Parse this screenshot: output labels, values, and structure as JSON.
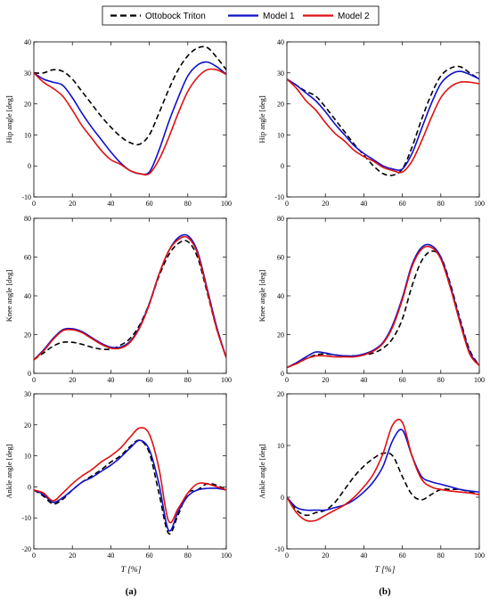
{
  "legend": {
    "items": [
      {
        "label": "Ottobock Triton",
        "color": "#000000",
        "dash": true
      },
      {
        "label": "Model 1",
        "color": "#1010c8",
        "dash": false
      },
      {
        "label": "Model 2",
        "color": "#e01010",
        "dash": false
      }
    ]
  },
  "panel_labels": [
    "(a)",
    "(b)"
  ],
  "x_axis_label": "T [%]",
  "chart_data": [
    {
      "type": "line",
      "id": "hip-a",
      "col": 0,
      "row": 0,
      "ylabel": "Hip angle [deg]",
      "xlim": [
        0,
        100
      ],
      "ylim": [
        -10,
        40
      ],
      "yticks": [
        -10,
        0,
        10,
        20,
        30,
        40
      ],
      "xticks": [
        0,
        20,
        40,
        60,
        80,
        100
      ],
      "x": [
        0,
        5,
        10,
        15,
        20,
        25,
        30,
        35,
        40,
        45,
        50,
        55,
        60,
        65,
        70,
        75,
        80,
        85,
        90,
        95,
        100
      ],
      "series": [
        {
          "name": "Ottobock Triton",
          "values": [
            30,
            30,
            31,
            30.5,
            28,
            24,
            20,
            16,
            12.5,
            9.5,
            7.5,
            7,
            10,
            17,
            24.5,
            31,
            35.5,
            38,
            38.2,
            35,
            31
          ]
        },
        {
          "name": "Model 1",
          "values": [
            30,
            28,
            27,
            26,
            22,
            17,
            12.5,
            8.5,
            4.5,
            1,
            -1.5,
            -2.5,
            -2,
            5,
            14,
            22,
            29,
            32.5,
            33.5,
            32,
            29.5
          ]
        },
        {
          "name": "Model 2",
          "values": [
            30,
            27,
            25,
            22.5,
            18,
            13,
            9,
            5,
            2,
            0.5,
            -1.5,
            -2.5,
            -2.5,
            2,
            9,
            17,
            24,
            28.5,
            31,
            31,
            29.5
          ]
        }
      ]
    },
    {
      "type": "line",
      "id": "knee-a",
      "col": 0,
      "row": 1,
      "ylabel": "Knee angle [deg]",
      "xlim": [
        0,
        100
      ],
      "ylim": [
        0,
        80
      ],
      "yticks": [
        0,
        20,
        40,
        60,
        80
      ],
      "xticks": [
        0,
        20,
        40,
        60,
        80,
        100
      ],
      "x": [
        0,
        5,
        10,
        15,
        20,
        25,
        30,
        35,
        40,
        45,
        50,
        55,
        60,
        65,
        70,
        75,
        80,
        85,
        90,
        95,
        100
      ],
      "series": [
        {
          "name": "Ottobock Triton",
          "values": [
            7,
            10.5,
            14,
            16,
            16,
            15,
            13.5,
            12.5,
            12.5,
            14.5,
            18,
            25,
            36,
            50,
            61,
            67,
            68,
            60,
            42,
            23,
            8
          ]
        },
        {
          "name": "Model 1",
          "values": [
            7,
            12,
            18,
            22.5,
            23,
            21.5,
            18.5,
            15.5,
            13.5,
            13.5,
            16.5,
            24,
            36,
            51,
            63,
            70,
            71,
            63,
            44,
            24,
            8
          ]
        },
        {
          "name": "Model 2",
          "values": [
            7,
            11.5,
            17.5,
            22,
            22.5,
            21,
            18,
            15,
            13,
            13,
            16,
            23.5,
            35.5,
            51,
            63,
            69,
            70,
            62,
            43,
            23,
            8
          ]
        }
      ]
    },
    {
      "type": "line",
      "id": "ankle-a",
      "col": 0,
      "row": 2,
      "ylabel": "Ankle angle [deg]",
      "xlim": [
        0,
        100
      ],
      "ylim": [
        -20,
        30
      ],
      "yticks": [
        -20,
        -10,
        0,
        10,
        20,
        30
      ],
      "xticks": [
        0,
        20,
        40,
        60,
        80,
        100
      ],
      "x": [
        0,
        5,
        10,
        15,
        20,
        25,
        30,
        35,
        40,
        45,
        50,
        55,
        60,
        65,
        70,
        75,
        80,
        85,
        90,
        95,
        100
      ],
      "series": [
        {
          "name": "Ottobock Triton",
          "values": [
            -1,
            -3,
            -5.5,
            -4,
            -1,
            1.5,
            3.5,
            5.5,
            8,
            10,
            13,
            15,
            11,
            -2,
            -15,
            -9,
            -2,
            -1,
            1,
            0.5,
            -1
          ]
        },
        {
          "name": "Model 1",
          "values": [
            -1,
            -2.5,
            -5,
            -3.5,
            -1,
            1.5,
            3,
            5,
            7,
            9.5,
            12.5,
            15,
            12,
            1,
            -14,
            -8,
            -3,
            -1,
            -0.5,
            -0.5,
            -1
          ]
        },
        {
          "name": "Model 2",
          "values": [
            -1,
            -2,
            -4.5,
            -2,
            1,
            3.5,
            5.5,
            8,
            10,
            12.5,
            16,
            19,
            17,
            6,
            -11,
            -7,
            -2,
            1,
            1,
            0,
            -1
          ]
        }
      ]
    },
    {
      "type": "line",
      "id": "hip-b",
      "col": 1,
      "row": 0,
      "ylabel": "Hip angle [deg]",
      "xlim": [
        0,
        100
      ],
      "ylim": [
        -10,
        40
      ],
      "yticks": [
        -10,
        0,
        10,
        20,
        30,
        40
      ],
      "xticks": [
        0,
        20,
        40,
        60,
        80,
        100
      ],
      "x": [
        0,
        5,
        10,
        15,
        20,
        25,
        30,
        35,
        40,
        45,
        50,
        55,
        60,
        65,
        70,
        75,
        80,
        85,
        90,
        95,
        100
      ],
      "series": [
        {
          "name": "Ottobock Triton",
          "values": [
            28,
            26,
            24,
            22.5,
            19,
            15,
            11,
            7,
            3.5,
            0,
            -2.5,
            -3,
            -1,
            6,
            15,
            23,
            29,
            31.5,
            32,
            30,
            28
          ]
        },
        {
          "name": "Model 1",
          "values": [
            28,
            26,
            23.5,
            21,
            17.5,
            13.5,
            10,
            6.5,
            4,
            2,
            0,
            -1,
            -1,
            4,
            12,
            20,
            26.5,
            29.5,
            30.5,
            29.5,
            28
          ]
        },
        {
          "name": "Model 2",
          "values": [
            28,
            25,
            21,
            18,
            14,
            10.5,
            8,
            5,
            3,
            1.5,
            -0.5,
            -1.5,
            -2,
            1.5,
            8,
            15.5,
            22,
            25.5,
            27,
            27,
            26.5
          ]
        }
      ]
    },
    {
      "type": "line",
      "id": "knee-b",
      "col": 1,
      "row": 1,
      "ylabel": "Knee angle [deg]",
      "xlim": [
        0,
        100
      ],
      "ylim": [
        0,
        80
      ],
      "yticks": [
        0,
        20,
        40,
        60,
        80
      ],
      "xticks": [
        0,
        20,
        40,
        60,
        80,
        100
      ],
      "x": [
        0,
        5,
        10,
        15,
        20,
        25,
        30,
        35,
        40,
        45,
        50,
        55,
        60,
        65,
        70,
        75,
        80,
        85,
        90,
        95,
        100
      ],
      "series": [
        {
          "name": "Ottobock Triton",
          "values": [
            3,
            5,
            7.5,
            9.5,
            10,
            9.5,
            9,
            9,
            9.5,
            10.5,
            13,
            18,
            28,
            45,
            58,
            63,
            60,
            46,
            28,
            12,
            4
          ]
        },
        {
          "name": "Model 1",
          "values": [
            3,
            5.5,
            8.5,
            11,
            10.5,
            9.5,
            9,
            9,
            10,
            12,
            16,
            25,
            39,
            56,
            65,
            66,
            60,
            45,
            27,
            11,
            4
          ]
        },
        {
          "name": "Model 2",
          "values": [
            3,
            5,
            7.5,
            9,
            9,
            8.5,
            8.5,
            8.5,
            9.5,
            11.5,
            15.5,
            24,
            38,
            55,
            64,
            65,
            59,
            44,
            26,
            10,
            4
          ]
        }
      ]
    },
    {
      "type": "line",
      "id": "ankle-b",
      "col": 1,
      "row": 2,
      "ylabel": "Ankle angle [deg]",
      "xlim": [
        0,
        100
      ],
      "ylim": [
        -10,
        20
      ],
      "yticks": [
        -10,
        0,
        10,
        20
      ],
      "xticks": [
        0,
        20,
        40,
        60,
        80,
        100
      ],
      "x": [
        0,
        5,
        10,
        15,
        20,
        25,
        30,
        35,
        40,
        45,
        50,
        55,
        60,
        65,
        70,
        75,
        80,
        85,
        90,
        95,
        100
      ],
      "series": [
        {
          "name": "Ottobock Triton",
          "values": [
            0,
            -2.5,
            -3.5,
            -3,
            -2.5,
            -1,
            1.5,
            4,
            6,
            7.5,
            8.5,
            8,
            4,
            0.5,
            -0.5,
            0.5,
            1.5,
            1.5,
            1.5,
            1,
            0.5
          ]
        },
        {
          "name": "Model 1",
          "values": [
            0,
            -2,
            -2.5,
            -2.5,
            -2.5,
            -2,
            -1.5,
            -0.5,
            1,
            3,
            6,
            11,
            13,
            8,
            4,
            3,
            2.5,
            2,
            1.5,
            1.2,
            1
          ]
        },
        {
          "name": "Model 2",
          "values": [
            0,
            -3,
            -4.5,
            -4.5,
            -3.5,
            -2.5,
            -1.5,
            0,
            2,
            4.5,
            8.5,
            14,
            14.5,
            8,
            3.5,
            2,
            1.5,
            1.2,
            1,
            0.8,
            0.5
          ]
        }
      ]
    }
  ]
}
